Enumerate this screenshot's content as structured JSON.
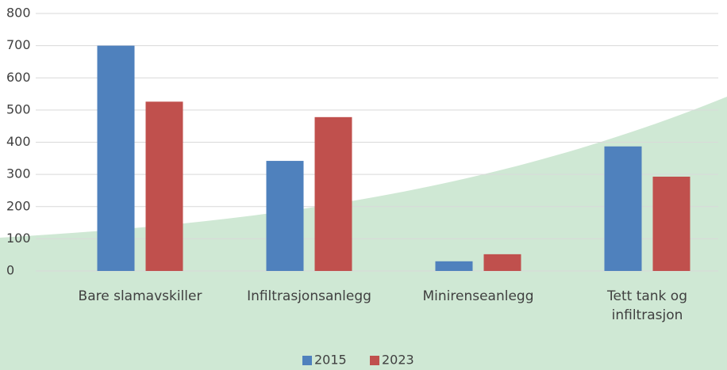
{
  "chart_data": {
    "type": "bar",
    "categories": [
      "Bare slamavskiller",
      "Infiltrasjonsanlegg",
      "Minirenseanlegg",
      "Tett tank  og infiltrasjon"
    ],
    "series": [
      {
        "name": "2015",
        "color": "#4f81bd",
        "values": [
          700,
          342,
          30,
          387
        ]
      },
      {
        "name": "2023",
        "color": "#c0504d",
        "values": [
          526,
          478,
          52,
          293
        ]
      }
    ],
    "ylim": [
      0,
      800
    ],
    "yticks": [
      0,
      100,
      200,
      300,
      400,
      500,
      600,
      700,
      800
    ],
    "grid": true,
    "legend": "bottom"
  }
}
